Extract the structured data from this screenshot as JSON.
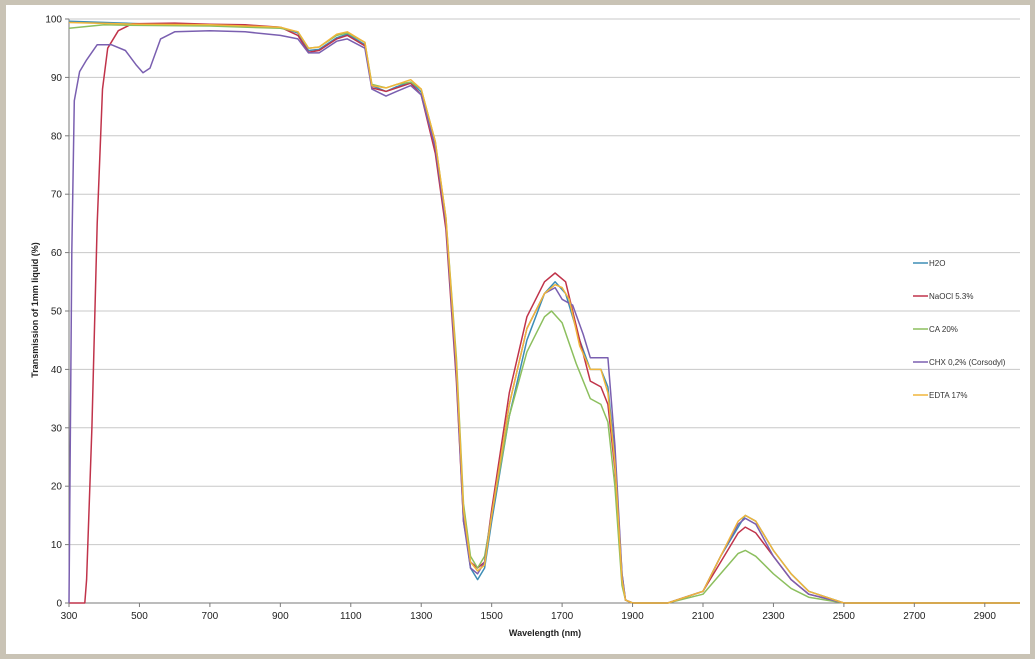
{
  "chart_data": {
    "type": "line",
    "title": "",
    "xlabel": "Wavelength (nm)",
    "ylabel": "Transmission of 1mm liquid (%)",
    "xlim": [
      300,
      3000
    ],
    "ylim": [
      0,
      100
    ],
    "x_ticks": [
      300,
      500,
      700,
      900,
      1100,
      1300,
      1500,
      1700,
      1900,
      2100,
      2300,
      2500,
      2700,
      2900
    ],
    "y_ticks": [
      0,
      10,
      20,
      30,
      40,
      50,
      60,
      70,
      80,
      90,
      100
    ],
    "grid": "horizontal",
    "legend_position": "right",
    "series": [
      {
        "name": "H2O",
        "color": "#3d8db5",
        "points": [
          [
            300,
            99.6
          ],
          [
            500,
            99.2
          ],
          [
            700,
            99.0
          ],
          [
            900,
            98.6
          ],
          [
            950,
            97.6
          ],
          [
            980,
            94.6
          ],
          [
            1010,
            94.8
          ],
          [
            1060,
            96.8
          ],
          [
            1090,
            97.4
          ],
          [
            1140,
            95.6
          ],
          [
            1160,
            88.6
          ],
          [
            1200,
            87.6
          ],
          [
            1230,
            88.4
          ],
          [
            1270,
            89.2
          ],
          [
            1300,
            87.5
          ],
          [
            1340,
            78
          ],
          [
            1370,
            65
          ],
          [
            1400,
            40
          ],
          [
            1420,
            15
          ],
          [
            1440,
            6
          ],
          [
            1460,
            4
          ],
          [
            1480,
            6
          ],
          [
            1500,
            14
          ],
          [
            1550,
            32
          ],
          [
            1600,
            45
          ],
          [
            1650,
            53
          ],
          [
            1680,
            55
          ],
          [
            1710,
            53
          ],
          [
            1750,
            45
          ],
          [
            1780,
            40
          ],
          [
            1810,
            40
          ],
          [
            1830,
            37
          ],
          [
            1850,
            25
          ],
          [
            1870,
            5
          ],
          [
            1880,
            0.5
          ],
          [
            1900,
            0
          ],
          [
            2000,
            0
          ],
          [
            2100,
            2
          ],
          [
            2150,
            8
          ],
          [
            2200,
            13
          ],
          [
            2220,
            15
          ],
          [
            2250,
            14
          ],
          [
            2300,
            9
          ],
          [
            2350,
            5
          ],
          [
            2400,
            2
          ],
          [
            2500,
            0
          ],
          [
            3000,
            0
          ]
        ]
      },
      {
        "name": "NaOCl 5.3%",
        "color": "#c0334a",
        "points": [
          [
            300,
            0
          ],
          [
            345,
            0
          ],
          [
            350,
            4
          ],
          [
            365,
            30
          ],
          [
            380,
            65
          ],
          [
            395,
            88
          ],
          [
            410,
            95
          ],
          [
            440,
            98
          ],
          [
            480,
            99.2
          ],
          [
            600,
            99.3
          ],
          [
            700,
            99.1
          ],
          [
            800,
            99.0
          ],
          [
            900,
            98.6
          ],
          [
            950,
            97.2
          ],
          [
            980,
            94.3
          ],
          [
            1010,
            94.6
          ],
          [
            1060,
            96.6
          ],
          [
            1090,
            97.2
          ],
          [
            1140,
            95.4
          ],
          [
            1160,
            88.2
          ],
          [
            1200,
            87.6
          ],
          [
            1230,
            88.2
          ],
          [
            1270,
            89.0
          ],
          [
            1300,
            87
          ],
          [
            1340,
            77
          ],
          [
            1370,
            64
          ],
          [
            1400,
            38
          ],
          [
            1420,
            14
          ],
          [
            1440,
            7
          ],
          [
            1460,
            6
          ],
          [
            1480,
            7
          ],
          [
            1500,
            16
          ],
          [
            1550,
            36
          ],
          [
            1600,
            49
          ],
          [
            1650,
            55
          ],
          [
            1680,
            56.5
          ],
          [
            1710,
            55
          ],
          [
            1750,
            45
          ],
          [
            1780,
            38
          ],
          [
            1810,
            37
          ],
          [
            1830,
            34
          ],
          [
            1850,
            23
          ],
          [
            1870,
            4
          ],
          [
            1880,
            0.5
          ],
          [
            1900,
            0
          ],
          [
            2000,
            0
          ],
          [
            2100,
            2
          ],
          [
            2150,
            7
          ],
          [
            2200,
            12
          ],
          [
            2220,
            13
          ],
          [
            2250,
            12
          ],
          [
            2300,
            8
          ],
          [
            2350,
            4
          ],
          [
            2400,
            1.5
          ],
          [
            2500,
            0
          ],
          [
            3000,
            0
          ]
        ]
      },
      {
        "name": "CA 20%",
        "color": "#8cbf5e",
        "points": [
          [
            300,
            98.4
          ],
          [
            400,
            99.0
          ],
          [
            500,
            98.9
          ],
          [
            700,
            98.8
          ],
          [
            900,
            98.4
          ],
          [
            950,
            97.8
          ],
          [
            980,
            95.0
          ],
          [
            1010,
            95.2
          ],
          [
            1060,
            97.2
          ],
          [
            1090,
            97.6
          ],
          [
            1140,
            96.0
          ],
          [
            1160,
            88.8
          ],
          [
            1200,
            88.2
          ],
          [
            1230,
            88.8
          ],
          [
            1270,
            89.2
          ],
          [
            1300,
            88
          ],
          [
            1340,
            79
          ],
          [
            1370,
            66
          ],
          [
            1400,
            42
          ],
          [
            1420,
            17
          ],
          [
            1440,
            8
          ],
          [
            1460,
            6
          ],
          [
            1480,
            8
          ],
          [
            1500,
            15
          ],
          [
            1550,
            32
          ],
          [
            1600,
            43
          ],
          [
            1650,
            49
          ],
          [
            1670,
            50
          ],
          [
            1700,
            48
          ],
          [
            1740,
            41
          ],
          [
            1780,
            35
          ],
          [
            1810,
            34
          ],
          [
            1830,
            31
          ],
          [
            1850,
            20
          ],
          [
            1870,
            3
          ],
          [
            1880,
            0.5
          ],
          [
            1900,
            0
          ],
          [
            2000,
            0
          ],
          [
            2100,
            1.5
          ],
          [
            2150,
            5
          ],
          [
            2200,
            8.5
          ],
          [
            2220,
            9
          ],
          [
            2250,
            8
          ],
          [
            2300,
            5
          ],
          [
            2350,
            2.5
          ],
          [
            2400,
            1
          ],
          [
            2500,
            0
          ],
          [
            3000,
            0
          ]
        ]
      },
      {
        "name": "CHX 0,2% (Corsodyl)",
        "color": "#7a5fb0",
        "points": [
          [
            300,
            0
          ],
          [
            302,
            15
          ],
          [
            308,
            60
          ],
          [
            315,
            86
          ],
          [
            330,
            91
          ],
          [
            350,
            93
          ],
          [
            380,
            95.6
          ],
          [
            420,
            95.6
          ],
          [
            460,
            94.6
          ],
          [
            490,
            92.2
          ],
          [
            510,
            90.8
          ],
          [
            530,
            91.6
          ],
          [
            560,
            96.6
          ],
          [
            600,
            97.8
          ],
          [
            700,
            98.0
          ],
          [
            800,
            97.8
          ],
          [
            900,
            97.2
          ],
          [
            950,
            96.6
          ],
          [
            980,
            94.2
          ],
          [
            1010,
            94.2
          ],
          [
            1060,
            96.2
          ],
          [
            1090,
            96.6
          ],
          [
            1140,
            95.0
          ],
          [
            1160,
            88.0
          ],
          [
            1200,
            86.8
          ],
          [
            1230,
            87.6
          ],
          [
            1270,
            88.6
          ],
          [
            1300,
            87
          ],
          [
            1340,
            78
          ],
          [
            1370,
            65
          ],
          [
            1400,
            39
          ],
          [
            1420,
            14
          ],
          [
            1440,
            6
          ],
          [
            1460,
            5
          ],
          [
            1480,
            7
          ],
          [
            1500,
            15
          ],
          [
            1550,
            34
          ],
          [
            1600,
            47
          ],
          [
            1650,
            53
          ],
          [
            1680,
            54
          ],
          [
            1700,
            52
          ],
          [
            1730,
            51
          ],
          [
            1760,
            46
          ],
          [
            1780,
            42
          ],
          [
            1810,
            42
          ],
          [
            1830,
            42
          ],
          [
            1850,
            27
          ],
          [
            1870,
            5
          ],
          [
            1880,
            0.5
          ],
          [
            1900,
            0
          ],
          [
            2000,
            0
          ],
          [
            2100,
            2
          ],
          [
            2150,
            8
          ],
          [
            2200,
            13.5
          ],
          [
            2220,
            14.5
          ],
          [
            2250,
            13.5
          ],
          [
            2300,
            8
          ],
          [
            2350,
            4
          ],
          [
            2400,
            1.5
          ],
          [
            2500,
            0
          ],
          [
            3000,
            0
          ]
        ]
      },
      {
        "name": "EDTA 17%",
        "color": "#f0b53a",
        "points": [
          [
            300,
            99.4
          ],
          [
            500,
            99.1
          ],
          [
            700,
            99.0
          ],
          [
            800,
            98.8
          ],
          [
            900,
            98.6
          ],
          [
            950,
            97.8
          ],
          [
            980,
            95.0
          ],
          [
            1010,
            95.2
          ],
          [
            1060,
            97.4
          ],
          [
            1090,
            97.8
          ],
          [
            1140,
            96.0
          ],
          [
            1160,
            88.6
          ],
          [
            1200,
            88.2
          ],
          [
            1230,
            88.8
          ],
          [
            1270,
            89.6
          ],
          [
            1300,
            88
          ],
          [
            1340,
            79
          ],
          [
            1370,
            66
          ],
          [
            1400,
            41
          ],
          [
            1420,
            16
          ],
          [
            1440,
            7
          ],
          [
            1460,
            5.5
          ],
          [
            1480,
            6.5
          ],
          [
            1500,
            15
          ],
          [
            1550,
            34
          ],
          [
            1600,
            47
          ],
          [
            1650,
            53
          ],
          [
            1680,
            54.5
          ],
          [
            1700,
            54
          ],
          [
            1720,
            52
          ],
          [
            1750,
            44
          ],
          [
            1780,
            40
          ],
          [
            1810,
            40
          ],
          [
            1830,
            36
          ],
          [
            1850,
            24
          ],
          [
            1870,
            4
          ],
          [
            1880,
            0.5
          ],
          [
            1900,
            0
          ],
          [
            2000,
            0
          ],
          [
            2100,
            2
          ],
          [
            2150,
            8
          ],
          [
            2200,
            14
          ],
          [
            2220,
            15
          ],
          [
            2250,
            14
          ],
          [
            2300,
            9
          ],
          [
            2350,
            5
          ],
          [
            2400,
            2
          ],
          [
            2500,
            0
          ],
          [
            3000,
            0
          ]
        ]
      }
    ]
  }
}
